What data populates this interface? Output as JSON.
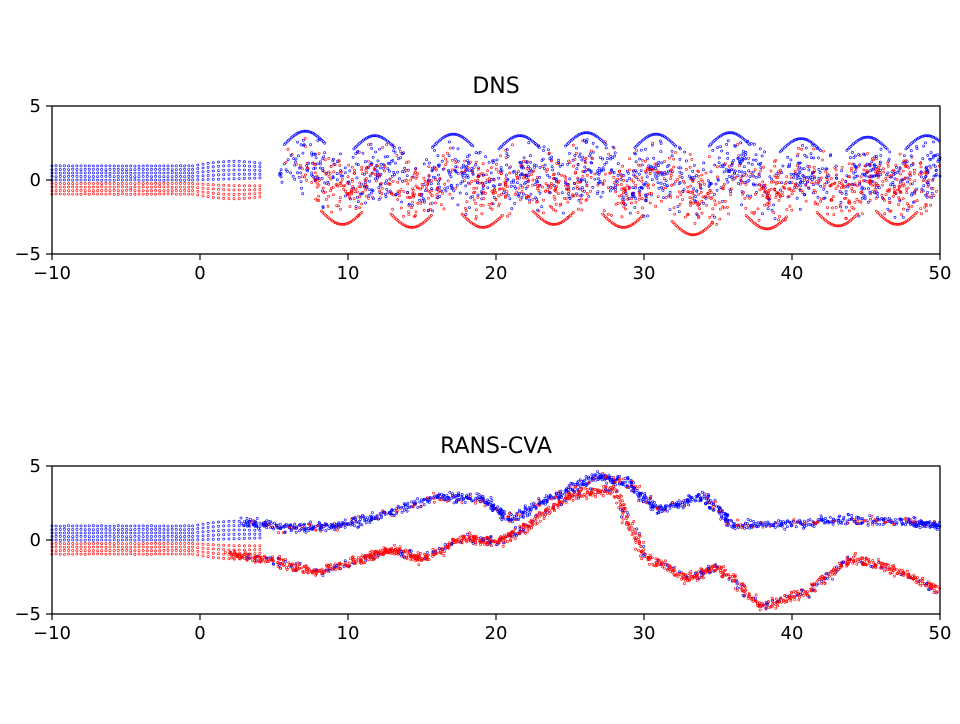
{
  "chart_data": [
    {
      "type": "scatter",
      "title": "DNS",
      "xlim": [
        -10,
        50
      ],
      "ylim": [
        -5,
        5
      ],
      "xticks": [
        -10,
        0,
        10,
        20,
        30,
        40,
        50
      ],
      "yticks": [
        -5,
        0,
        5
      ],
      "xtick_labels": [
        "−10",
        "0",
        "10",
        "20",
        "30",
        "40",
        "50"
      ],
      "ytick_labels": [
        "−5",
        "0",
        "5"
      ],
      "series_colors": [
        "#0000ff",
        "#ff0000"
      ],
      "grid": false,
      "pattern": "vortex-street",
      "vortex_centers_upper": [
        [
          7.5,
          0.9
        ],
        [
          12.2,
          0.6
        ],
        [
          17.5,
          0.7
        ],
        [
          22.0,
          0.6
        ],
        [
          26.5,
          0.8
        ],
        [
          31.2,
          0.7
        ],
        [
          36.2,
          0.8
        ],
        [
          41.0,
          0.4
        ],
        [
          45.5,
          0.5
        ],
        [
          49.5,
          0.6
        ]
      ],
      "vortex_centers_lower": [
        [
          10.0,
          -0.6
        ],
        [
          14.7,
          -0.8
        ],
        [
          19.5,
          -0.8
        ],
        [
          24.3,
          -0.6
        ],
        [
          29.0,
          -0.8
        ],
        [
          33.7,
          -1.3
        ],
        [
          38.7,
          -0.9
        ],
        [
          43.5,
          -0.7
        ],
        [
          47.5,
          -0.6
        ]
      ]
    },
    {
      "type": "scatter",
      "title": "RANS-CVA",
      "xlim": [
        -10,
        50
      ],
      "ylim": [
        -5,
        5
      ],
      "xticks": [
        -10,
        0,
        10,
        20,
        30,
        40,
        50
      ],
      "yticks": [
        -5,
        0,
        5
      ],
      "xtick_labels": [
        "−10",
        "0",
        "10",
        "20",
        "30",
        "40",
        "50"
      ],
      "ytick_labels": [
        "−5",
        "0",
        "5"
      ],
      "series_colors": [
        "#0000ff",
        "#ff0000"
      ],
      "grid": false,
      "pattern": "filament-clusters",
      "upper_filament_path": [
        [
          3,
          1.2
        ],
        [
          6,
          0.8
        ],
        [
          9,
          0.9
        ],
        [
          12,
          1.6
        ],
        [
          16,
          2.9
        ],
        [
          19,
          2.8
        ],
        [
          21,
          1.4
        ],
        [
          24,
          3.0
        ],
        [
          27,
          4.3
        ],
        [
          29,
          3.8
        ],
        [
          31,
          2.0
        ],
        [
          34,
          3.0
        ],
        [
          36,
          1.0
        ],
        [
          40,
          1.1
        ],
        [
          44,
          1.4
        ],
        [
          48,
          1.2
        ],
        [
          50,
          1.0
        ]
      ],
      "lower_filament_path": [
        [
          2,
          -1.0
        ],
        [
          5,
          -1.4
        ],
        [
          8,
          -2.2
        ],
        [
          11,
          -1.3
        ],
        [
          13,
          -0.6
        ],
        [
          15,
          -1.3
        ],
        [
          18,
          0.2
        ],
        [
          20,
          -0.2
        ],
        [
          22,
          0.8
        ],
        [
          25,
          3.0
        ],
        [
          28,
          3.4
        ],
        [
          30,
          -1.0
        ],
        [
          33,
          -2.6
        ],
        [
          35,
          -1.8
        ],
        [
          38,
          -4.5
        ],
        [
          41,
          -3.5
        ],
        [
          44,
          -1.2
        ],
        [
          47,
          -2.0
        ],
        [
          50,
          -3.5
        ]
      ]
    }
  ]
}
